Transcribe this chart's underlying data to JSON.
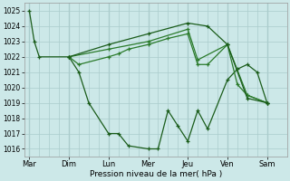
{
  "xlabel": "Pression niveau de la mer( hPa )",
  "ylim": [
    1015.5,
    1025.5
  ],
  "yticks": [
    1016,
    1017,
    1018,
    1019,
    1020,
    1021,
    1022,
    1023,
    1024,
    1025
  ],
  "day_labels": [
    "Mar",
    "Dim",
    "Lun",
    "Mer",
    "Jeu",
    "Ven",
    "Sam"
  ],
  "day_positions": [
    0,
    8,
    16,
    24,
    32,
    40,
    48
  ],
  "bg_color": "#cce8e8",
  "grid_color": "#aacccc",
  "line_color_dark": "#1a5c1a",
  "line_color_med": "#2a7a2a",
  "line1_x": [
    0,
    1,
    2,
    8,
    10,
    12,
    16,
    18,
    20,
    24,
    26,
    28,
    30,
    32,
    34,
    36,
    40,
    42,
    44,
    46,
    48
  ],
  "line1_y": [
    1025.0,
    1023.0,
    1022.0,
    1022.0,
    1021.0,
    1019.0,
    1017.0,
    1017.0,
    1016.2,
    1016.0,
    1016.0,
    1018.5,
    1017.5,
    1016.5,
    1018.5,
    1017.3,
    1020.5,
    1021.2,
    1021.5,
    1021.0,
    1019.0
  ],
  "line2_x": [
    8,
    10,
    16,
    18,
    20,
    24,
    28,
    32,
    34,
    36,
    40,
    42,
    44,
    48
  ],
  "line2_y": [
    1022.0,
    1021.5,
    1022.0,
    1022.2,
    1022.5,
    1022.8,
    1023.2,
    1023.5,
    1021.5,
    1021.5,
    1022.8,
    1020.2,
    1019.5,
    1019.0
  ],
  "line3_x": [
    8,
    16,
    24,
    32,
    34,
    40,
    44,
    48
  ],
  "line3_y": [
    1022.0,
    1022.5,
    1023.0,
    1023.8,
    1021.8,
    1022.8,
    1019.5,
    1019.0
  ],
  "line4_x": [
    8,
    16,
    24,
    32,
    36,
    40,
    44,
    48
  ],
  "line4_y": [
    1022.0,
    1022.8,
    1023.5,
    1024.2,
    1024.0,
    1022.8,
    1019.3,
    1019.0
  ]
}
